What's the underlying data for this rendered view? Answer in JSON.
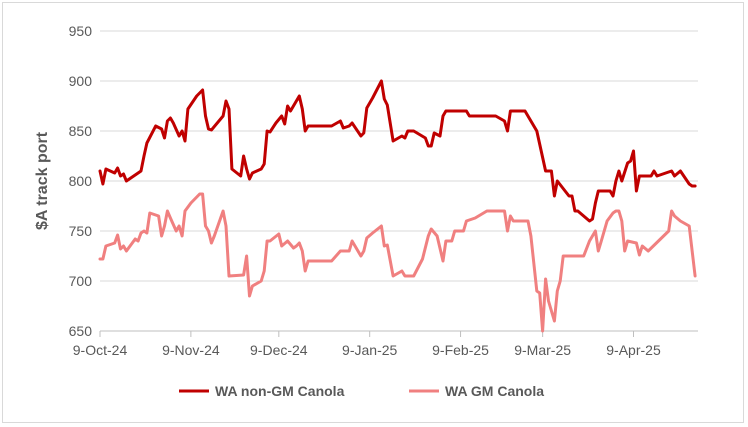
{
  "chart_data": {
    "type": "line",
    "title": "",
    "xlabel": "",
    "ylabel": "$A track port",
    "ylim": [
      650,
      950
    ],
    "yticks": [
      650,
      700,
      750,
      800,
      850,
      900,
      950
    ],
    "xlim": [
      "2024-10-09",
      "2025-05-01"
    ],
    "xticks": [
      {
        "date": "2024-10-09",
        "label": "9-Oct-24"
      },
      {
        "date": "2024-11-09",
        "label": "9-Nov-24"
      },
      {
        "date": "2024-12-09",
        "label": "9-Dec-24"
      },
      {
        "date": "2025-01-09",
        "label": "9-Jan-25"
      },
      {
        "date": "2025-02-09",
        "label": "9-Feb-25"
      },
      {
        "date": "2025-03-09",
        "label": "9-Mar-25"
      },
      {
        "date": "2025-04-09",
        "label": "9-Apr-25"
      }
    ],
    "grid": "horizontal",
    "legend_position": "bottom",
    "series": [
      {
        "name": "WA non-GM Canola",
        "color": "#c00000",
        "points": [
          [
            "2024-10-09",
            810
          ],
          [
            "2024-10-10",
            797
          ],
          [
            "2024-10-11",
            812
          ],
          [
            "2024-10-14",
            808
          ],
          [
            "2024-10-15",
            813
          ],
          [
            "2024-10-16",
            805
          ],
          [
            "2024-10-17",
            807
          ],
          [
            "2024-10-18",
            800
          ],
          [
            "2024-10-22",
            808
          ],
          [
            "2024-10-23",
            810
          ],
          [
            "2024-10-24",
            825
          ],
          [
            "2024-10-25",
            838
          ],
          [
            "2024-10-28",
            855
          ],
          [
            "2024-10-30",
            852
          ],
          [
            "2024-10-31",
            843
          ],
          [
            "2024-11-01",
            860
          ],
          [
            "2024-11-02",
            863
          ],
          [
            "2024-11-03",
            858
          ],
          [
            "2024-11-05",
            845
          ],
          [
            "2024-11-06",
            850
          ],
          [
            "2024-11-07",
            840
          ],
          [
            "2024-11-08",
            872
          ],
          [
            "2024-11-11",
            885
          ],
          [
            "2024-11-13",
            891
          ],
          [
            "2024-11-14",
            865
          ],
          [
            "2024-11-15",
            852
          ],
          [
            "2024-11-16",
            851
          ],
          [
            "2024-11-20",
            865
          ],
          [
            "2024-11-21",
            880
          ],
          [
            "2024-11-22",
            872
          ],
          [
            "2024-11-23",
            812
          ],
          [
            "2024-11-26",
            805
          ],
          [
            "2024-11-27",
            825
          ],
          [
            "2024-11-28",
            812
          ],
          [
            "2024-11-29",
            802
          ],
          [
            "2024-11-30",
            808
          ],
          [
            "2024-12-03",
            812
          ],
          [
            "2024-12-04",
            817
          ],
          [
            "2024-12-05",
            850
          ],
          [
            "2024-12-06",
            849
          ],
          [
            "2024-12-08",
            858
          ],
          [
            "2024-12-10",
            865
          ],
          [
            "2024-12-11",
            857
          ],
          [
            "2024-12-12",
            875
          ],
          [
            "2024-12-13",
            870
          ],
          [
            "2024-12-16",
            885
          ],
          [
            "2024-12-17",
            872
          ],
          [
            "2024-12-18",
            850
          ],
          [
            "2024-12-19",
            855
          ],
          [
            "2024-12-27",
            855
          ],
          [
            "2024-12-30",
            860
          ],
          [
            "2024-12-31",
            853
          ],
          [
            "2025-01-02",
            855
          ],
          [
            "2025-01-03",
            858
          ],
          [
            "2025-01-06",
            845
          ],
          [
            "2025-01-07",
            848
          ],
          [
            "2025-01-08",
            873
          ],
          [
            "2025-01-10",
            883
          ],
          [
            "2025-01-13",
            900
          ],
          [
            "2025-01-14",
            882
          ],
          [
            "2025-01-15",
            876
          ],
          [
            "2025-01-17",
            840
          ],
          [
            "2025-01-20",
            845
          ],
          [
            "2025-01-21",
            843
          ],
          [
            "2025-01-22",
            850
          ],
          [
            "2025-01-24",
            850
          ],
          [
            "2025-01-28",
            843
          ],
          [
            "2025-01-29",
            835
          ],
          [
            "2025-01-30",
            835
          ],
          [
            "2025-01-31",
            848
          ],
          [
            "2025-02-02",
            845
          ],
          [
            "2025-02-03",
            865
          ],
          [
            "2025-02-04",
            870
          ],
          [
            "2025-02-11",
            870
          ],
          [
            "2025-02-12",
            865
          ],
          [
            "2025-02-21",
            865
          ],
          [
            "2025-02-24",
            860
          ],
          [
            "2025-02-25",
            850
          ],
          [
            "2025-02-26",
            870
          ],
          [
            "2025-03-03",
            870
          ],
          [
            "2025-03-07",
            850
          ],
          [
            "2025-03-10",
            810
          ],
          [
            "2025-03-12",
            810
          ],
          [
            "2025-03-13",
            785
          ],
          [
            "2025-03-14",
            800
          ],
          [
            "2025-03-18",
            785
          ],
          [
            "2025-03-19",
            785
          ],
          [
            "2025-03-20",
            770
          ],
          [
            "2025-03-21",
            770
          ],
          [
            "2025-03-25",
            760
          ],
          [
            "2025-03-26",
            762
          ],
          [
            "2025-03-27",
            778
          ],
          [
            "2025-03-28",
            790
          ],
          [
            "2025-04-01",
            790
          ],
          [
            "2025-04-02",
            785
          ],
          [
            "2025-04-03",
            800
          ],
          [
            "2025-04-04",
            810
          ],
          [
            "2025-04-05",
            800
          ],
          [
            "2025-04-07",
            818
          ],
          [
            "2025-04-08",
            820
          ],
          [
            "2025-04-09",
            830
          ],
          [
            "2025-04-10",
            790
          ],
          [
            "2025-04-11",
            805
          ],
          [
            "2025-04-15",
            805
          ],
          [
            "2025-04-16",
            810
          ],
          [
            "2025-04-17",
            805
          ],
          [
            "2025-04-22",
            810
          ],
          [
            "2025-04-23",
            805
          ],
          [
            "2025-04-25",
            810
          ],
          [
            "2025-04-28",
            797
          ],
          [
            "2025-04-29",
            795
          ],
          [
            "2025-04-30",
            795
          ]
        ]
      },
      {
        "name": "WA GM Canola",
        "color": "#f08080",
        "points": [
          [
            "2024-10-09",
            722
          ],
          [
            "2024-10-10",
            722
          ],
          [
            "2024-10-11",
            735
          ],
          [
            "2024-10-14",
            738
          ],
          [
            "2024-10-15",
            746
          ],
          [
            "2024-10-16",
            732
          ],
          [
            "2024-10-17",
            735
          ],
          [
            "2024-10-18",
            730
          ],
          [
            "2024-10-21",
            742
          ],
          [
            "2024-10-22",
            740
          ],
          [
            "2024-10-23",
            748
          ],
          [
            "2024-10-24",
            750
          ],
          [
            "2024-10-25",
            748
          ],
          [
            "2024-10-26",
            768
          ],
          [
            "2024-10-29",
            765
          ],
          [
            "2024-10-30",
            745
          ],
          [
            "2024-10-31",
            755
          ],
          [
            "2024-11-01",
            770
          ],
          [
            "2024-11-02",
            763
          ],
          [
            "2024-11-04",
            750
          ],
          [
            "2024-11-05",
            755
          ],
          [
            "2024-11-06",
            745
          ],
          [
            "2024-11-07",
            770
          ],
          [
            "2024-11-09",
            778
          ],
          [
            "2024-11-12",
            787
          ],
          [
            "2024-11-13",
            787
          ],
          [
            "2024-11-14",
            755
          ],
          [
            "2024-11-15",
            750
          ],
          [
            "2024-11-16",
            738
          ],
          [
            "2024-11-17",
            745
          ],
          [
            "2024-11-20",
            770
          ],
          [
            "2024-11-21",
            755
          ],
          [
            "2024-11-22",
            705
          ],
          [
            "2024-11-27",
            706
          ],
          [
            "2024-11-28",
            725
          ],
          [
            "2024-11-29",
            685
          ],
          [
            "2024-11-30",
            695
          ],
          [
            "2024-12-03",
            700
          ],
          [
            "2024-12-04",
            710
          ],
          [
            "2024-12-05",
            740
          ],
          [
            "2024-12-06",
            740
          ],
          [
            "2024-12-09",
            747
          ],
          [
            "2024-12-10",
            735
          ],
          [
            "2024-12-12",
            740
          ],
          [
            "2024-12-14",
            733
          ],
          [
            "2024-12-15",
            735
          ],
          [
            "2024-12-16",
            738
          ],
          [
            "2024-12-17",
            730
          ],
          [
            "2024-12-18",
            710
          ],
          [
            "2024-12-19",
            720
          ],
          [
            "2024-12-27",
            720
          ],
          [
            "2024-12-30",
            730
          ],
          [
            "2025-01-02",
            730
          ],
          [
            "2025-01-03",
            740
          ],
          [
            "2025-01-06",
            725
          ],
          [
            "2025-01-07",
            730
          ],
          [
            "2025-01-08",
            743
          ],
          [
            "2025-01-10",
            748
          ],
          [
            "2025-01-13",
            755
          ],
          [
            "2025-01-14",
            735
          ],
          [
            "2025-01-15",
            736
          ],
          [
            "2025-01-17",
            705
          ],
          [
            "2025-01-20",
            710
          ],
          [
            "2025-01-21",
            705
          ],
          [
            "2025-01-24",
            705
          ],
          [
            "2025-01-27",
            722
          ],
          [
            "2025-01-29",
            745
          ],
          [
            "2025-01-30",
            752
          ],
          [
            "2025-02-01",
            745
          ],
          [
            "2025-02-03",
            720
          ],
          [
            "2025-02-04",
            740
          ],
          [
            "2025-02-06",
            740
          ],
          [
            "2025-02-07",
            750
          ],
          [
            "2025-02-10",
            750
          ],
          [
            "2025-02-11",
            760
          ],
          [
            "2025-02-14",
            763
          ],
          [
            "2025-02-18",
            770
          ],
          [
            "2025-02-24",
            770
          ],
          [
            "2025-02-25",
            750
          ],
          [
            "2025-02-26",
            765
          ],
          [
            "2025-02-27",
            760
          ],
          [
            "2025-03-04",
            760
          ],
          [
            "2025-03-05",
            745
          ],
          [
            "2025-03-07",
            690
          ],
          [
            "2025-03-08",
            688
          ],
          [
            "2025-03-09",
            650
          ],
          [
            "2025-03-10",
            702
          ],
          [
            "2025-03-11",
            680
          ],
          [
            "2025-03-13",
            660
          ],
          [
            "2025-03-14",
            690
          ],
          [
            "2025-03-15",
            700
          ],
          [
            "2025-03-16",
            725
          ],
          [
            "2025-03-17",
            725
          ],
          [
            "2025-03-23",
            725
          ],
          [
            "2025-03-25",
            740
          ],
          [
            "2025-03-27",
            750
          ],
          [
            "2025-03-28",
            730
          ],
          [
            "2025-03-29",
            740
          ],
          [
            "2025-03-31",
            760
          ],
          [
            "2025-04-02",
            768
          ],
          [
            "2025-04-03",
            770
          ],
          [
            "2025-04-04",
            770
          ],
          [
            "2025-04-05",
            760
          ],
          [
            "2025-04-06",
            730
          ],
          [
            "2025-04-07",
            740
          ],
          [
            "2025-04-10",
            738
          ],
          [
            "2025-04-11",
            726
          ],
          [
            "2025-04-12",
            735
          ],
          [
            "2025-04-14",
            730
          ],
          [
            "2025-04-21",
            750
          ],
          [
            "2025-04-22",
            770
          ],
          [
            "2025-04-23",
            765
          ],
          [
            "2025-04-25",
            760
          ],
          [
            "2025-04-28",
            755
          ],
          [
            "2025-04-30",
            705
          ]
        ]
      }
    ]
  }
}
